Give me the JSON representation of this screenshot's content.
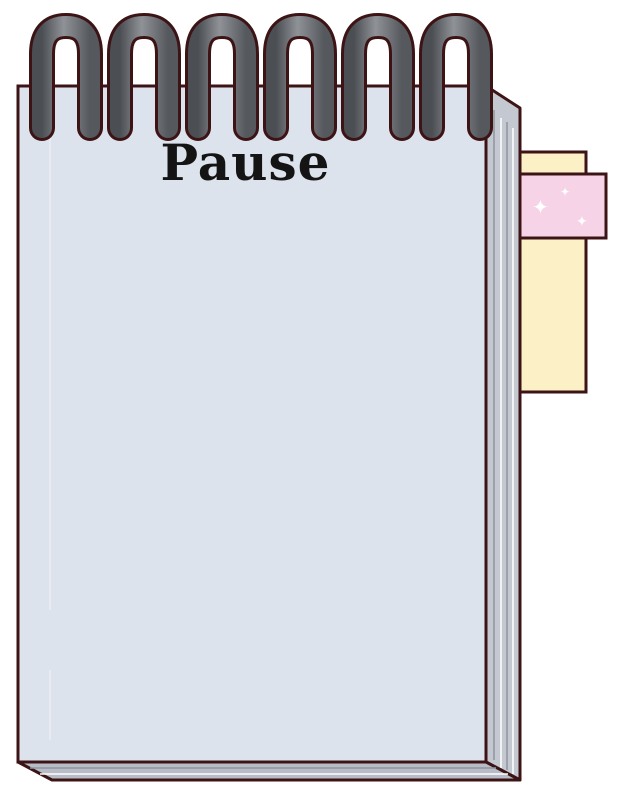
{
  "screen": {
    "title": "Pause"
  },
  "colors": {
    "paper": "#dde3ec",
    "outline": "#3d1416",
    "page_edges": "#b7bcc6",
    "spiral": "#6a6d72",
    "sticky_note": "#fbf0c6",
    "washi_tape": "#f7d3e8",
    "green_tab": "#d6eac8"
  },
  "decorations": {
    "spiral_rings": 6
  }
}
